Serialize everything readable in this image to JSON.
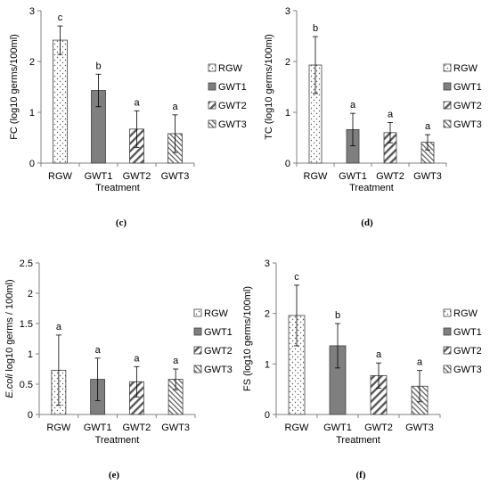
{
  "chart_data": [
    {
      "type": "bar",
      "panel_label": "(c)",
      "ylabel": "FC (log10 germs/100ml)",
      "xlabel": "Treatment",
      "categories": [
        "RGW",
        "GWT1",
        "GWT2",
        "GWT3"
      ],
      "values": [
        2.42,
        1.43,
        0.67,
        0.58
      ],
      "errors": [
        0.28,
        0.32,
        0.36,
        0.37
      ],
      "significance": [
        "c",
        "b",
        "a",
        "a"
      ],
      "ylim": [
        0,
        3
      ],
      "yticks": [
        "0",
        "1",
        "2",
        "3"
      ],
      "legend": [
        "RGW",
        "GWT1",
        "GWT2",
        "GWT3"
      ],
      "legend_position": "right"
    },
    {
      "type": "bar",
      "panel_label": "(d)",
      "ylabel": "TC (log10 germs/100ml)",
      "xlabel": "Treatment",
      "categories": [
        "RGW",
        "GWT1",
        "GWT2",
        "GWT3"
      ],
      "values": [
        1.93,
        0.66,
        0.6,
        0.41
      ],
      "errors": [
        0.56,
        0.32,
        0.2,
        0.15
      ],
      "significance": [
        "b",
        "a",
        "a",
        "a"
      ],
      "ylim": [
        0,
        3
      ],
      "yticks": [
        "0",
        "1",
        "2",
        "3"
      ],
      "legend": [
        "RGW",
        "GWT1",
        "GWT2",
        "GWT3"
      ],
      "legend_position": "right"
    },
    {
      "type": "bar",
      "panel_label": "(e)",
      "ylabel_italic": "E.coli",
      "ylabel": " log10 germs / 100ml)",
      "xlabel": "Treatment",
      "categories": [
        "RGW",
        "GWT1",
        "GWT2",
        "GWT3"
      ],
      "values": [
        0.73,
        0.58,
        0.54,
        0.58
      ],
      "errors": [
        0.58,
        0.35,
        0.25,
        0.17
      ],
      "significance": [
        "a",
        "a",
        "a",
        "a"
      ],
      "ylim": [
        0,
        2.5
      ],
      "yticks": [
        "0",
        "0.5",
        "1",
        "1.5",
        "2",
        "2.5"
      ],
      "legend": [
        "RGW",
        "GWT1",
        "GWT2",
        "GWT3"
      ],
      "legend_position": "right"
    },
    {
      "type": "bar",
      "panel_label": "(f)",
      "ylabel": "FS  (log10 germs/100ml)",
      "xlabel": "Treatment",
      "categories": [
        "RGW",
        "GWT1",
        "GWT2",
        "GWT3"
      ],
      "values": [
        1.96,
        1.36,
        0.77,
        0.56
      ],
      "errors": [
        0.6,
        0.44,
        0.25,
        0.31
      ],
      "significance": [
        "c",
        "b",
        "a",
        "a"
      ],
      "ylim": [
        0,
        3
      ],
      "yticks": [
        "0",
        "1",
        "2",
        "3"
      ],
      "legend": [
        "RGW",
        "GWT1",
        "GWT2",
        "GWT3"
      ],
      "legend_position": "right"
    }
  ],
  "colors": {
    "axis": "#808080",
    "bar_outline": "#404040",
    "gwt1_fill": "#7f7f7f",
    "pattern_ink": "#595959"
  },
  "patterns": [
    "dots",
    "solid",
    "wide-diagonal",
    "fine-diagonal"
  ]
}
